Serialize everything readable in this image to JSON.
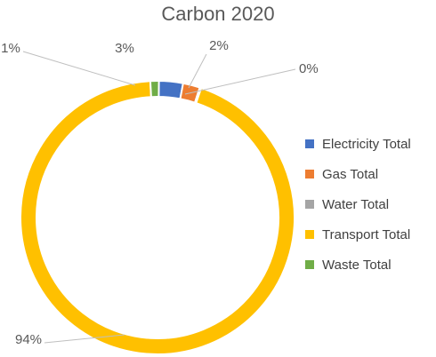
{
  "chart_data": {
    "type": "pie",
    "variant": "doughnut",
    "title": "Carbon 2020",
    "categories": [
      "Electricity Total",
      "Gas Total",
      "Water Total",
      "Transport Total",
      "Waste Total"
    ],
    "values": [
      3,
      2,
      0,
      94,
      1
    ],
    "data_labels": [
      "3%",
      "2%",
      "0%",
      "94%",
      "1%"
    ],
    "colors": [
      "#4472C4",
      "#ED7D31",
      "#A5A5A5",
      "#FFC000",
      "#70AD47"
    ],
    "legend_position": "right"
  }
}
